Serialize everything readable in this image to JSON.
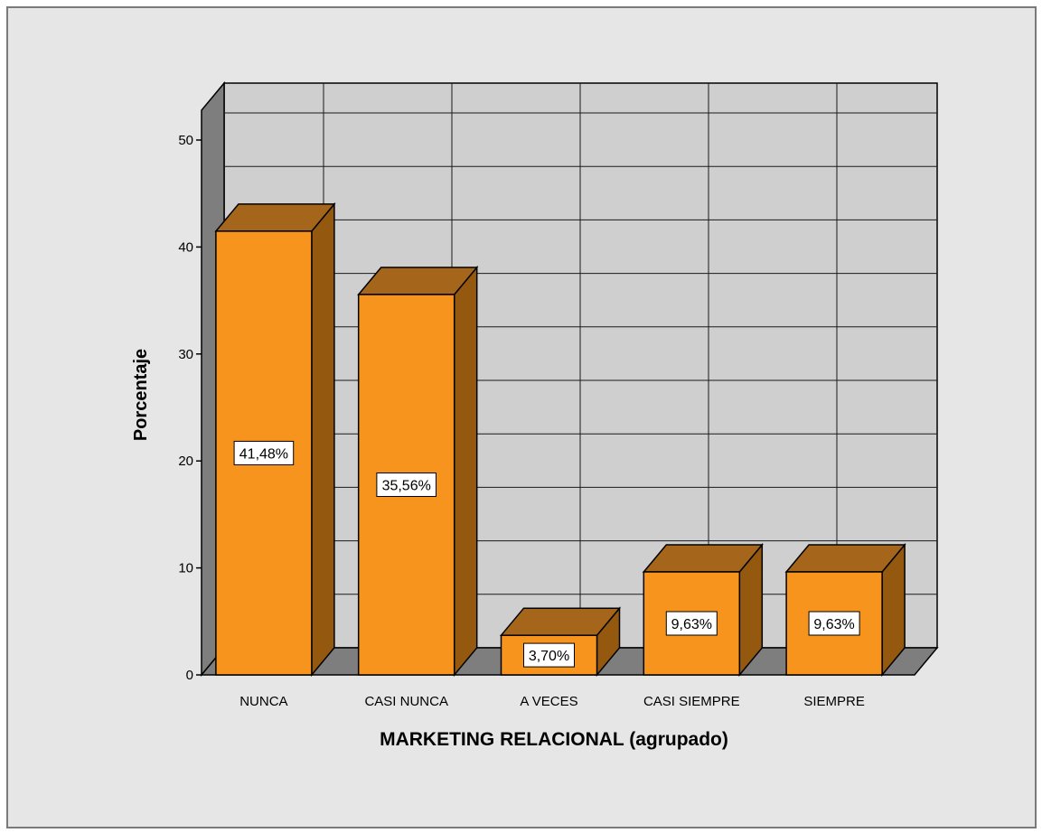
{
  "chart_data": {
    "type": "bar",
    "categories": [
      "NUNCA",
      "CASI NUNCA",
      "A VECES",
      "CASI SIEMPRE",
      "SIEMPRE"
    ],
    "values": [
      41.48,
      35.56,
      3.7,
      9.63,
      9.63
    ],
    "data_labels": [
      "41,48%",
      "35,56%",
      "3,70%",
      "9,63%",
      "9,63%"
    ],
    "xlabel": "MARKETING RELACIONAL (agrupado)",
    "ylabel": "Porcentaje",
    "ylim": [
      0,
      53
    ],
    "yticks": [
      0,
      10,
      20,
      30,
      40,
      50
    ],
    "ytick_labels": [
      "0",
      "10",
      "20",
      "30",
      "40",
      "50"
    ],
    "grid": true,
    "style": "3d-bar",
    "colors": {
      "background": "#e6e6e6",
      "wall": "#cfcfcf",
      "side_wall": "#7e7e7e",
      "floor": "#7e7e7e",
      "bar_front": "#f7941d",
      "bar_side": "#94590f",
      "bar_top": "#a5651a",
      "grid": "#1a1a1a"
    }
  }
}
